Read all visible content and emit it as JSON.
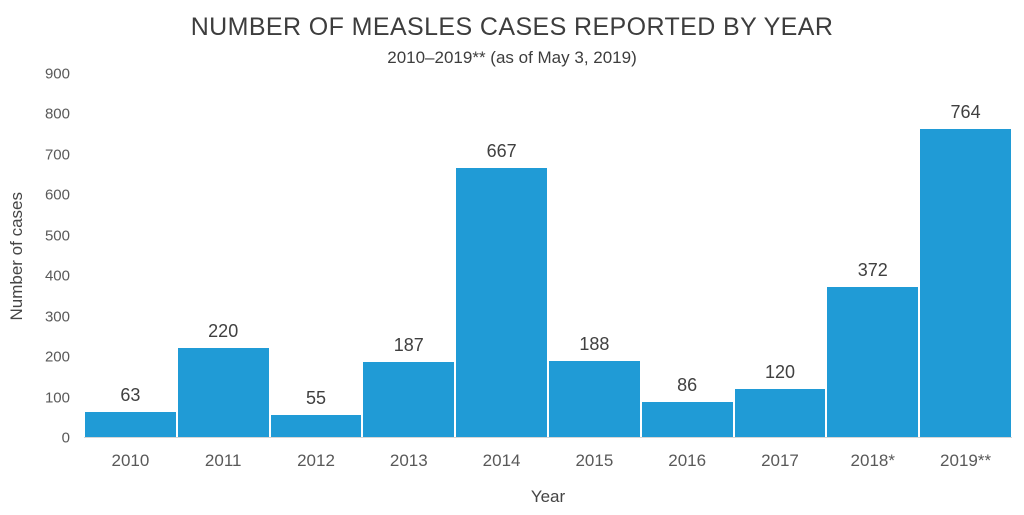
{
  "chart_data": {
    "type": "bar",
    "title": "NUMBER OF MEASLES CASES REPORTED BY YEAR",
    "subtitle": "2010–2019** (as of May 3, 2019)",
    "categories": [
      "2010",
      "2011",
      "2012",
      "2013",
      "2014",
      "2015",
      "2016",
      "2017",
      "2018*",
      "2019**"
    ],
    "values": [
      63,
      220,
      55,
      187,
      667,
      188,
      86,
      120,
      372,
      764
    ],
    "xlabel": "Year",
    "ylabel": "Number of cases",
    "ylim": [
      0,
      900
    ],
    "yticks": [
      0,
      100,
      200,
      300,
      400,
      500,
      600,
      700,
      800,
      900
    ],
    "grid": false,
    "legend": "none",
    "data_labels": true,
    "bar_color": "#209bd6",
    "text_color": "#404040",
    "tick_color": "#595959",
    "axis_line_color": "#d6d6d6"
  }
}
